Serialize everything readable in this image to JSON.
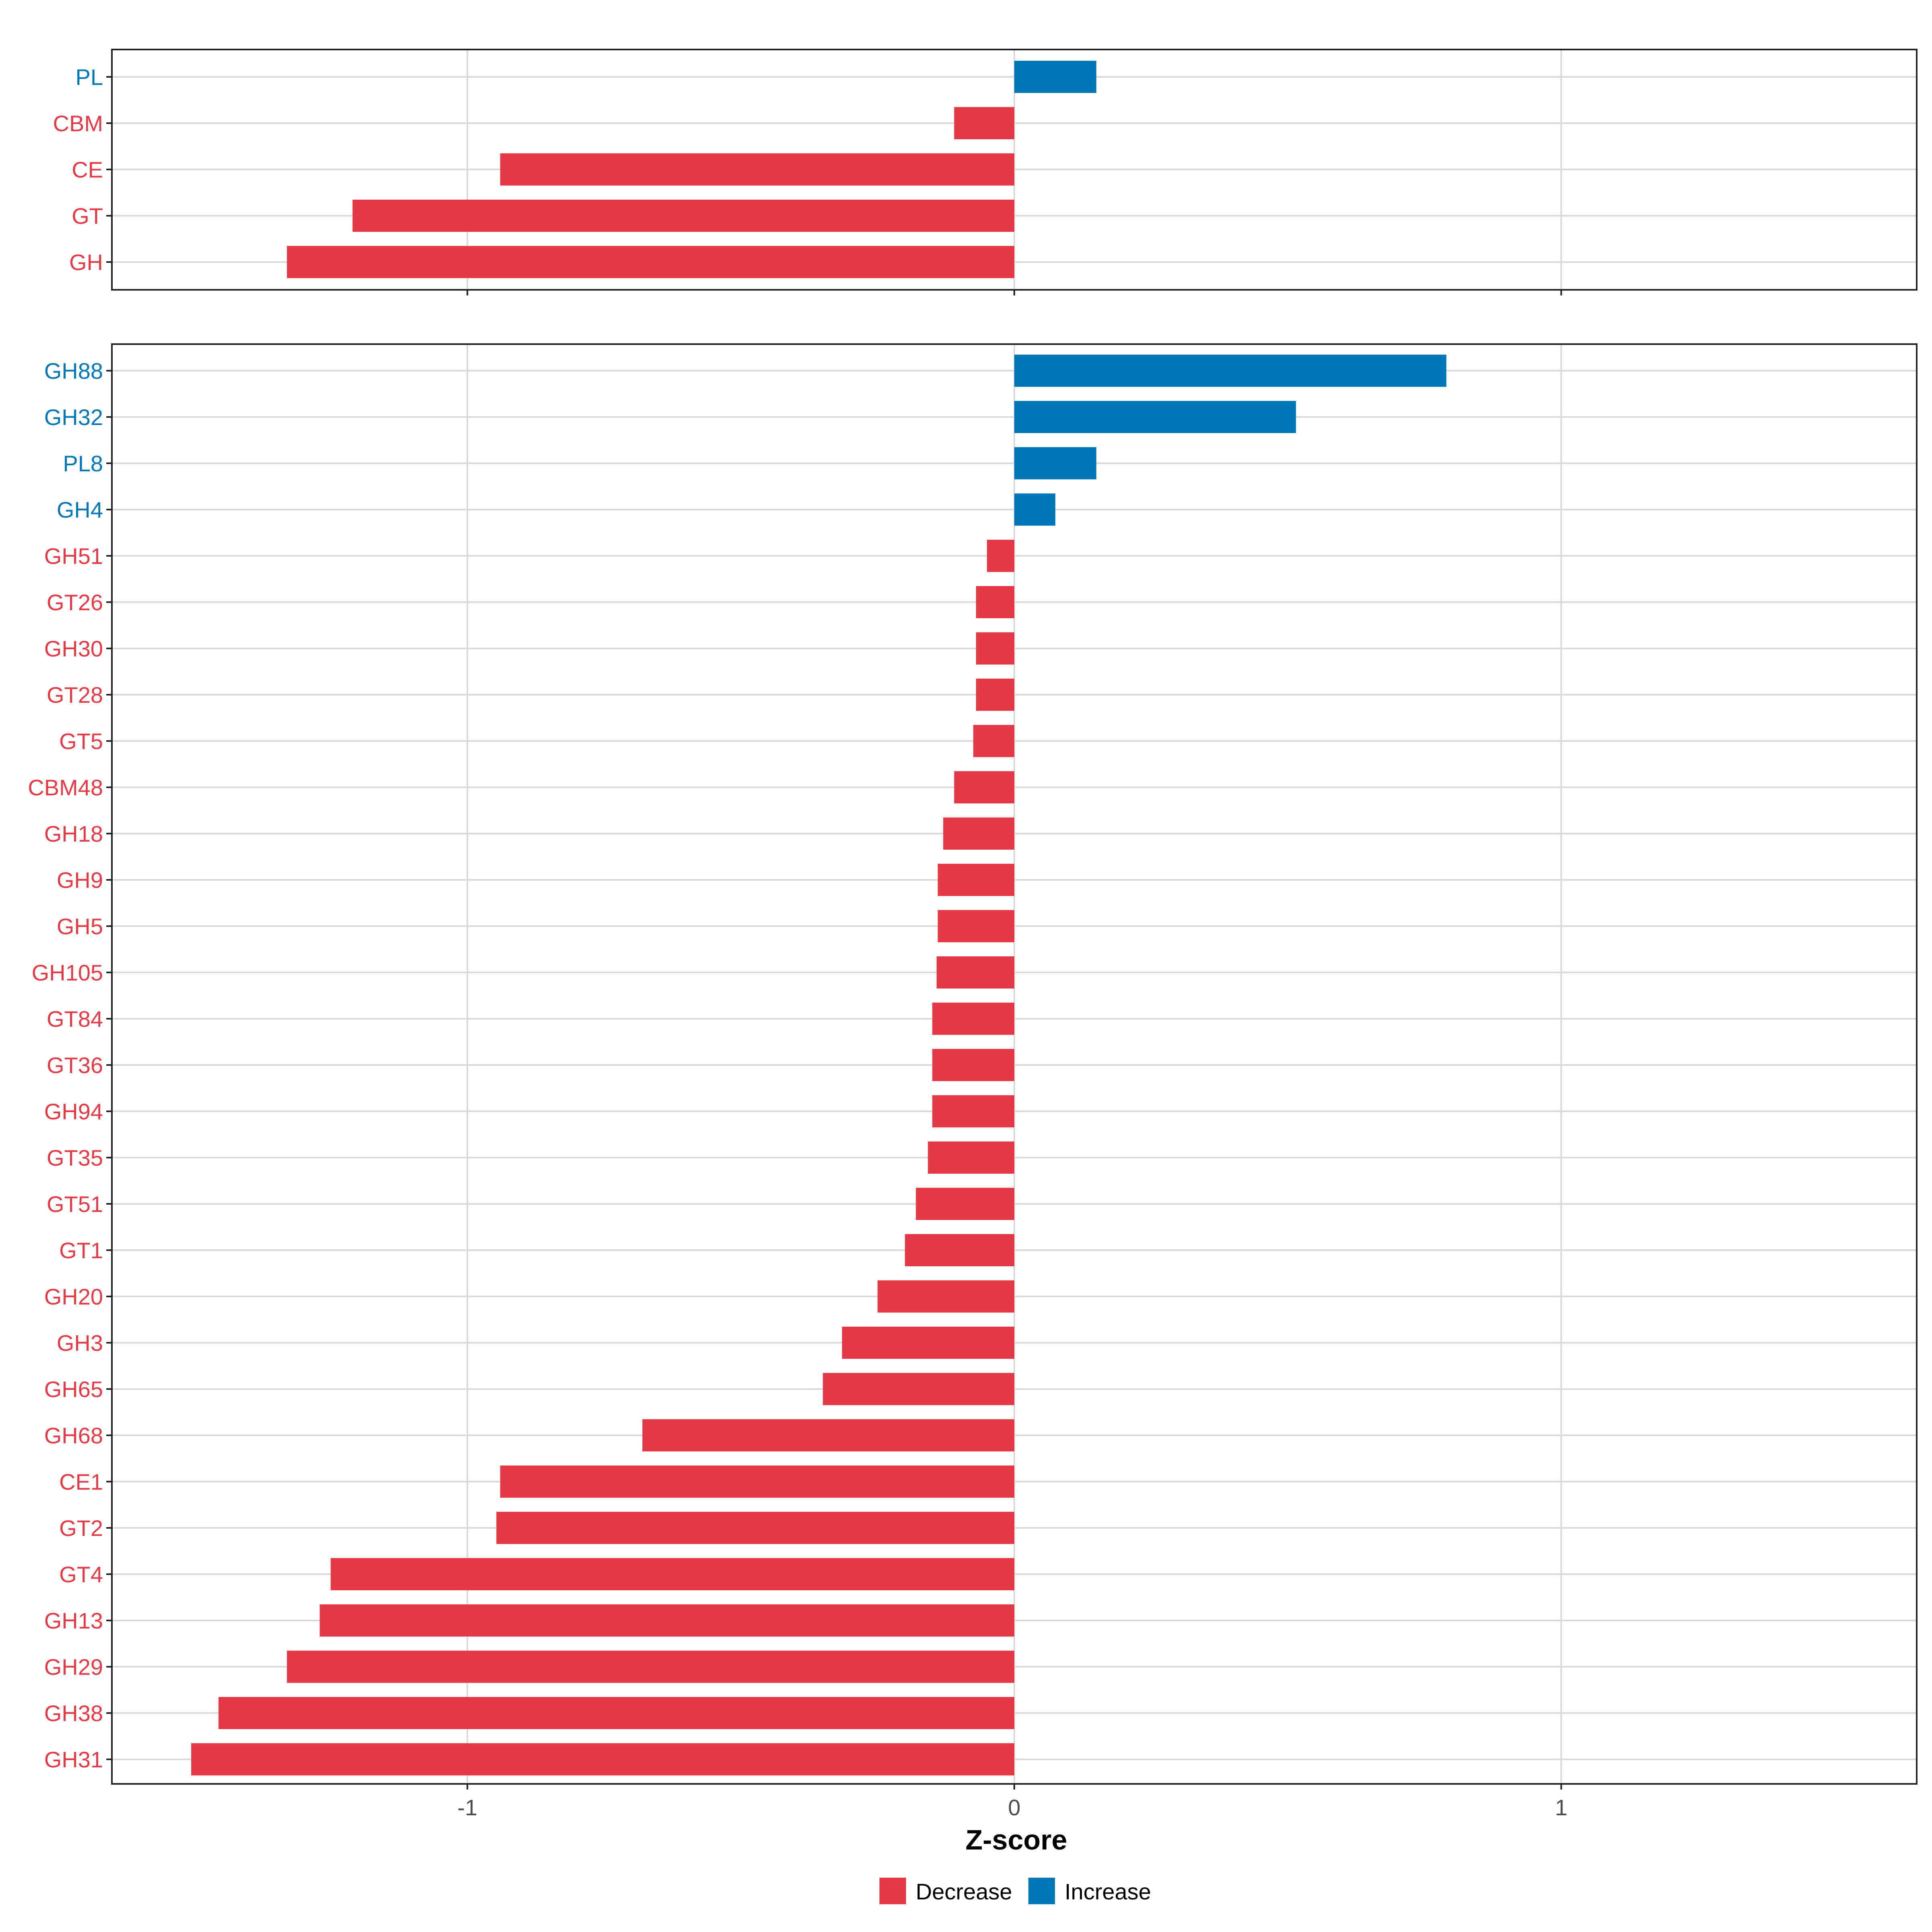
{
  "colors": {
    "decrease": "#E63946",
    "increase": "#0077B6",
    "grid": "#D9D9D9",
    "axis": "#222222"
  },
  "chart_data": [
    {
      "type": "bar",
      "orientation": "horizontal",
      "panel": "top",
      "categories": [
        "PL",
        "CBM",
        "CE",
        "GT",
        "GH"
      ],
      "values": [
        0.15,
        -0.11,
        -0.94,
        -1.21,
        -1.33
      ],
      "groups": [
        "Increase",
        "Decrease",
        "Decrease",
        "Decrease",
        "Decrease"
      ],
      "xlim": [
        -1.65,
        1.65
      ],
      "x_ticks": [
        -1,
        0,
        1
      ],
      "grid": true
    },
    {
      "type": "bar",
      "orientation": "horizontal",
      "panel": "bottom",
      "categories": [
        "GH88",
        "GH32",
        "PL8",
        "GH4",
        "GH51",
        "GT26",
        "GH30",
        "GT28",
        "GT5",
        "CBM48",
        "GH18",
        "GH9",
        "GH5",
        "GH105",
        "GT84",
        "GT36",
        "GH94",
        "GT35",
        "GT51",
        "GT1",
        "GH20",
        "GH3",
        "GH65",
        "GH68",
        "CE1",
        "GT2",
        "GT4",
        "GH13",
        "GH29",
        "GH38",
        "GH31"
      ],
      "values": [
        0.79,
        0.515,
        0.15,
        0.075,
        -0.05,
        -0.07,
        -0.07,
        -0.07,
        -0.075,
        -0.11,
        -0.13,
        -0.14,
        -0.14,
        -0.142,
        -0.15,
        -0.15,
        -0.15,
        -0.158,
        -0.18,
        -0.2,
        -0.25,
        -0.315,
        -0.35,
        -0.68,
        -0.94,
        -0.947,
        -1.25,
        -1.27,
        -1.33,
        -1.455,
        -1.505
      ],
      "groups": [
        "Increase",
        "Increase",
        "Increase",
        "Increase",
        "Decrease",
        "Decrease",
        "Decrease",
        "Decrease",
        "Decrease",
        "Decrease",
        "Decrease",
        "Decrease",
        "Decrease",
        "Decrease",
        "Decrease",
        "Decrease",
        "Decrease",
        "Decrease",
        "Decrease",
        "Decrease",
        "Decrease",
        "Decrease",
        "Decrease",
        "Decrease",
        "Decrease",
        "Decrease",
        "Decrease",
        "Decrease",
        "Decrease",
        "Decrease",
        "Decrease"
      ],
      "xlim": [
        -1.65,
        1.65
      ],
      "x_ticks": [
        -1,
        0,
        1
      ],
      "x_tick_labels": [
        "-1",
        "0",
        "1"
      ],
      "xlabel": "Z-score",
      "grid": true
    }
  ],
  "legend": {
    "position": "bottom",
    "items": [
      {
        "label": "Decrease",
        "group": "Decrease"
      },
      {
        "label": "Increase",
        "group": "Increase"
      }
    ]
  }
}
